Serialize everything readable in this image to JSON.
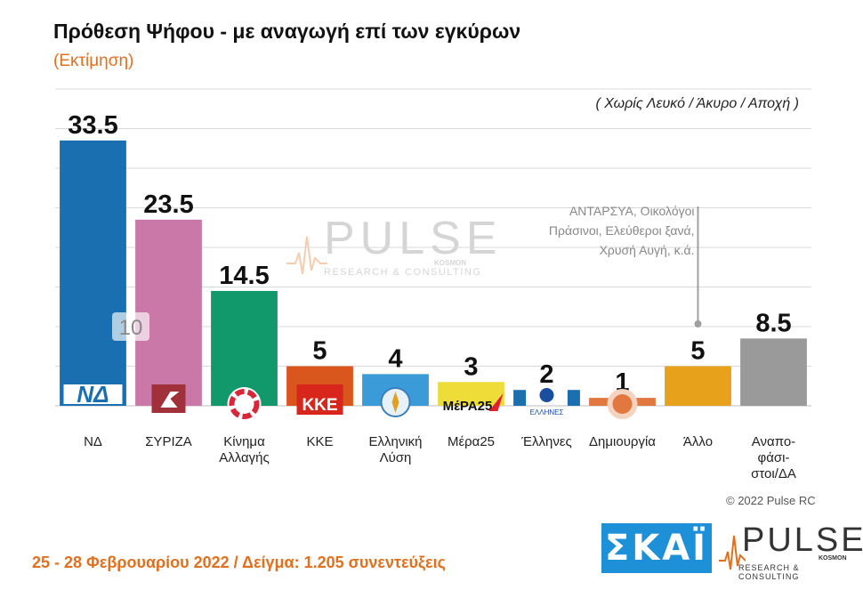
{
  "header": {
    "title": "Πρόθεση Ψήφου - με αναγωγή επί των εγκύρων",
    "subtitle": "(Εκτίμηση)",
    "note": "( Χωρίς Λευκό / Άκυρο / Αποχή )"
  },
  "chart_data": {
    "type": "bar",
    "title": "Πρόθεση Ψήφου - με αναγωγή επί των εγκύρων",
    "subtitle": "(Εκτίμηση)",
    "xlabel": "",
    "ylabel": "",
    "ylim": [
      0,
      40
    ],
    "grid": true,
    "categories": [
      "ΝΔ",
      "ΣΥΡΙΖΑ",
      "Κίνημα Αλλαγής",
      "ΚΚΕ",
      "Ελληνική Λύση",
      "Μέρα25",
      "Έλληνες",
      "Δημιουργία",
      "Άλλο",
      "Αναπο- φάσι- στοι/ΔΑ"
    ],
    "category_lines": [
      [
        "ΝΔ"
      ],
      [
        "ΣΥΡΙΖΑ"
      ],
      [
        "Κίνημα",
        "Αλλαγής"
      ],
      [
        "ΚΚΕ"
      ],
      [
        "Ελληνική",
        "Λύση"
      ],
      [
        "Μέρα25"
      ],
      [
        "Έλληνες"
      ],
      [
        "Δημιουργία"
      ],
      [
        "Άλλο"
      ],
      [
        "Αναπο-",
        "φάσι-",
        "στοι/ΔΑ"
      ]
    ],
    "values": [
      33.5,
      23.5,
      14.5,
      5,
      4,
      3,
      2,
      1,
      5,
      8.5
    ],
    "value_labels": [
      "33.5",
      "23.5",
      "14.5",
      "5",
      "4",
      "3",
      "2",
      "1",
      "5",
      "8.5"
    ],
    "colors": [
      "#1a6fb0",
      "#c978a8",
      "#11996b",
      "#d9561c",
      "#3b9ad8",
      "#eedc38",
      "#1a6fb0",
      "#e07840",
      "#e8a11a",
      "#9a9a9a"
    ],
    "extra_label": "10",
    "annotation": {
      "target": "Άλλο",
      "lines": [
        "ΑΝΤΑΡΣΥΑ, Οικολόγοι",
        "Πράσινοι, Ελεύθεροι ξανά,",
        "Χρυσή Αυγή,   κ.ά."
      ]
    },
    "party_logos": [
      {
        "category": "ΝΔ",
        "text": "ΝΔ",
        "icon": "nd-logo-icon"
      },
      {
        "category": "ΣΥΡΙΖΑ",
        "text": "",
        "icon": "syriza-logo-icon"
      },
      {
        "category": "Κίνημα Αλλαγής",
        "text": "",
        "icon": "kinal-logo-icon"
      },
      {
        "category": "ΚΚΕ",
        "text": "ΚΚΕ",
        "icon": "kke-logo-icon"
      },
      {
        "category": "Ελληνική Λύση",
        "text": "",
        "icon": "elliniki-lysi-logo-icon"
      },
      {
        "category": "Μέρα25",
        "text": "ΜέΡΑ25",
        "icon": "mera25-logo-icon"
      },
      {
        "category": "Έλληνες",
        "text": "ΕΛΛΗΝΕΣ",
        "icon": "ellines-logo-icon"
      },
      {
        "category": "Δημιουργία",
        "text": "",
        "icon": "dimiourgia-logo-icon"
      }
    ]
  },
  "watermark": {
    "brand": "PULSE",
    "sub": "KOSMON",
    "tagline": "RESEARCH & CONSULTING"
  },
  "footer": {
    "fieldwork": "25 - 28  Φεβρουαρίου  2022  /  Δείγμα:  1.205 συνεντεύξεις",
    "copyright": "© 2022 Pulse RC",
    "skai_logo": "ΣΚΑΪ",
    "pulse_logo": "PULSE",
    "pulse_sub": "KOSMON",
    "pulse_tagline": "RESEARCH & CONSULTING"
  }
}
